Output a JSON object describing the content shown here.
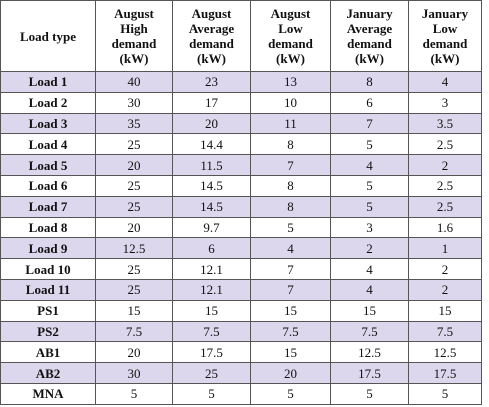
{
  "table": {
    "header": [
      [
        "Load type"
      ],
      [
        "August",
        "High",
        "demand",
        "(kW)"
      ],
      [
        "August",
        "Average",
        "demand",
        "(kW)"
      ],
      [
        "August",
        "Low",
        "demand",
        "(kW)"
      ],
      [
        "January",
        "Average",
        "demand",
        "(kW)"
      ],
      [
        "January",
        "Low",
        "demand",
        "(kW)"
      ]
    ],
    "rows": [
      [
        "Load 1",
        "40",
        "23",
        "13",
        "8",
        "4"
      ],
      [
        "Load 2",
        "30",
        "17",
        "10",
        "6",
        "3"
      ],
      [
        "Load 3",
        "35",
        "20",
        "11",
        "7",
        "3.5"
      ],
      [
        "Load 4",
        "25",
        "14.4",
        "8",
        "5",
        "2.5"
      ],
      [
        "Load 5",
        "20",
        "11.5",
        "7",
        "4",
        "2"
      ],
      [
        "Load 6",
        "25",
        "14.5",
        "8",
        "5",
        "2.5"
      ],
      [
        "Load 7",
        "25",
        "14.5",
        "8",
        "5",
        "2.5"
      ],
      [
        "Load 8",
        "20",
        "9.7",
        "5",
        "3",
        "1.6"
      ],
      [
        "Load 9",
        "12.5",
        "6",
        "4",
        "2",
        "1"
      ],
      [
        "Load 10",
        "25",
        "12.1",
        "7",
        "4",
        "2"
      ],
      [
        "Load 11",
        "25",
        "12.1",
        "7",
        "4",
        "2"
      ],
      [
        "PS1",
        "15",
        "15",
        "15",
        "15",
        "15"
      ],
      [
        "PS2",
        "7.5",
        "7.5",
        "7.5",
        "7.5",
        "7.5"
      ],
      [
        "AB1",
        "20",
        "17.5",
        "15",
        "12.5",
        "12.5"
      ],
      [
        "AB2",
        "30",
        "25",
        "20",
        "17.5",
        "17.5"
      ],
      [
        "MNA",
        "5",
        "5",
        "5",
        "5",
        "5"
      ]
    ]
  }
}
